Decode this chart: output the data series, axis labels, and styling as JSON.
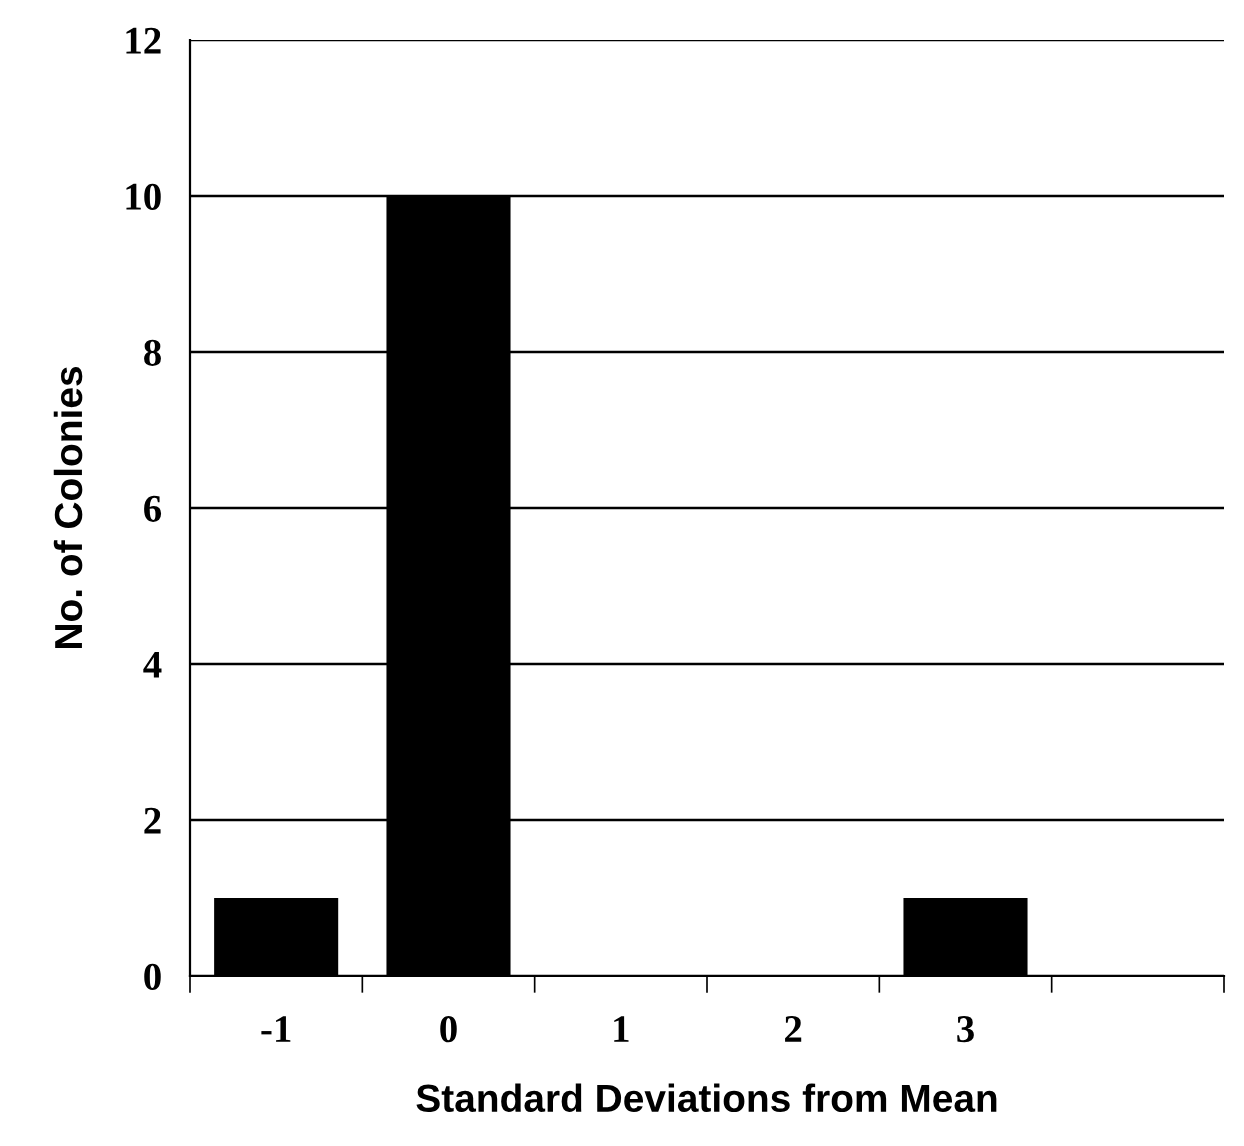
{
  "chart_data": {
    "type": "bar",
    "xlabel": "Standard Deviations from Mean",
    "ylabel": "No. of Colonies",
    "categories": [
      "-1",
      "0",
      "1",
      "2",
      "3",
      null
    ],
    "values": [
      1,
      10,
      0,
      0,
      1,
      0
    ],
    "color": "#000000",
    "ylim": [
      0,
      12
    ],
    "yticks": [
      0,
      2,
      4,
      6,
      8,
      10,
      12
    ],
    "grid": "y",
    "legend": false
  }
}
